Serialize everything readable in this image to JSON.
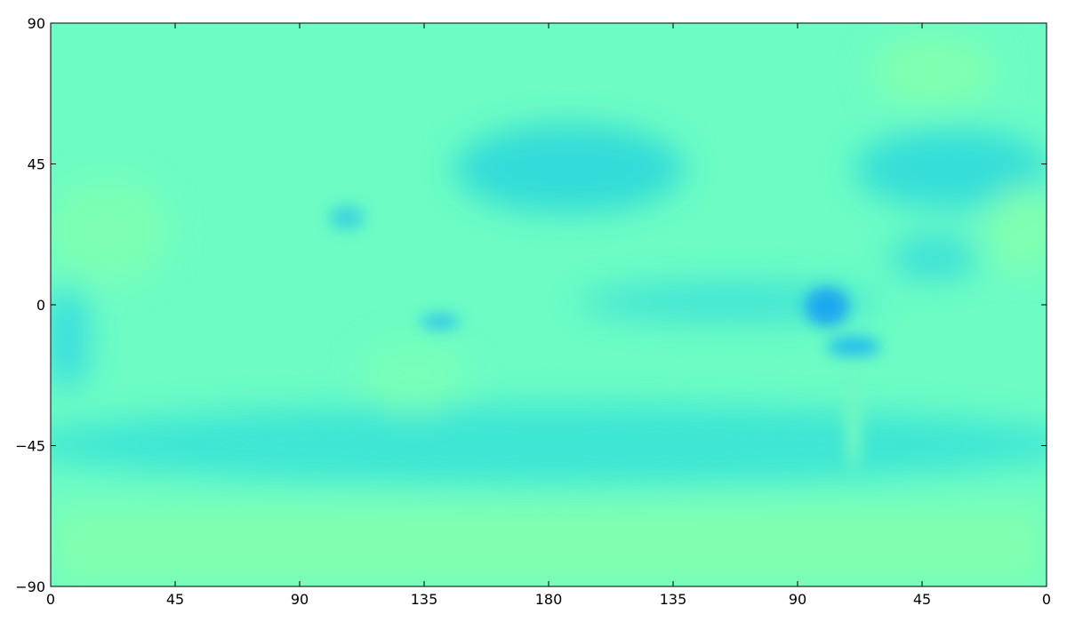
{
  "chart_data": {
    "type": "map",
    "xlim": [
      0,
      360
    ],
    "xticks": [
      0,
      45,
      90,
      135,
      180,
      {
        "value": 225,
        "label": "135"
      },
      {
        "value": 270,
        "label": "90"
      },
      {
        "value": 315,
        "label": "45"
      },
      {
        "value": 360,
        "label": "0"
      }
    ],
    "ylim": [
      -90,
      90
    ],
    "yticks": [
      {
        "value": -90,
        "label": "−90"
      },
      {
        "value": -45,
        "label": "−45"
      },
      0,
      45,
      90
    ]
  }
}
